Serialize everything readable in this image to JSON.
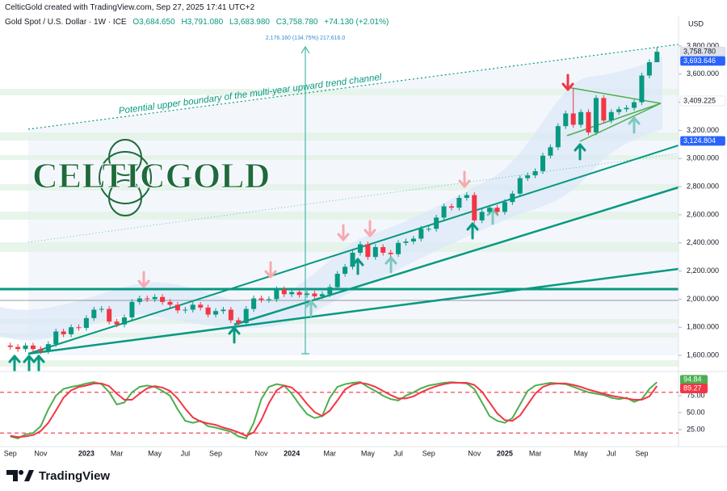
{
  "footer": "TradingView",
  "chart_data": [
    {
      "type": "candlestick",
      "title": "Gold Spot / U.S. Dollar · 1W · ICE",
      "subtitle": "CelticGold created with TradingView.com, Sep 27, 2025 17:41 UTC+2",
      "ohlc_labels": [
        "O3,684.650",
        "H3,791.080",
        "L3,683.980",
        "C3,758.780",
        "+74.130 (+2.01%)"
      ],
      "logo": "CELTICGOLD",
      "annotations": [
        "Potential upper boundary of the multi-year upward trend channel",
        "2,176.160 (134.75%) 217,616.0"
      ],
      "unit": "USD",
      "categories": [
        "Sep",
        null,
        null,
        null,
        "Nov",
        null,
        null,
        null,
        null,
        null,
        "2023",
        null,
        null,
        null,
        "Mar",
        null,
        null,
        null,
        null,
        "May",
        null,
        null,
        null,
        "Jul",
        null,
        null,
        null,
        "Sep",
        null,
        null,
        null,
        null,
        null,
        "Nov",
        null,
        null,
        null,
        "2024",
        null,
        null,
        null,
        null,
        "Mar",
        null,
        null,
        null,
        null,
        "May",
        null,
        null,
        null,
        "Jul",
        null,
        null,
        null,
        "Sep",
        null,
        null,
        null,
        null,
        null,
        "Nov",
        null,
        null,
        null,
        "2025",
        null,
        null,
        null,
        "Mar",
        null,
        null,
        null,
        null,
        null,
        "May",
        null,
        null,
        null,
        "Jul",
        null,
        null,
        null,
        "Sep",
        null,
        null
      ],
      "open": [
        1670,
        1660,
        1645,
        1670,
        1645,
        1630,
        1680,
        1770,
        1750,
        1800,
        1795,
        1865,
        1925,
        1930,
        1840,
        1820,
        1870,
        1980,
        2005,
        2000,
        2015,
        1980,
        1960,
        1920,
        1925,
        1960,
        1940,
        1890,
        1915,
        1925,
        1850,
        1830,
        1930,
        2005,
        1995,
        2000,
        2070,
        2035,
        2050,
        2030,
        2040,
        2020,
        2035,
        2085,
        2180,
        2230,
        2330,
        2390,
        2300,
        2370,
        2330,
        2320,
        2400,
        2410,
        2430,
        2500,
        2500,
        2580,
        2660,
        2650,
        2720,
        2740,
        2560,
        2620,
        2650,
        2620,
        2690,
        2750,
        2860,
        2880,
        2910,
        3020,
        3080,
        3230,
        3320,
        3240,
        3330,
        3185,
        3430,
        3270,
        3330,
        3350,
        3360,
        3400,
        3590,
        3684.65
      ],
      "high": [
        1690,
        1680,
        1690,
        1690,
        1665,
        1700,
        1790,
        1790,
        1820,
        1820,
        1885,
        1945,
        1950,
        1950,
        1860,
        1890,
        2000,
        2025,
        2025,
        2035,
        2035,
        2000,
        1980,
        1945,
        1980,
        1980,
        1960,
        1935,
        1945,
        1945,
        1870,
        1950,
        2025,
        2025,
        2020,
        2090,
        2090,
        2070,
        2070,
        2060,
        2060,
        2055,
        2105,
        2200,
        2250,
        2350,
        2410,
        2410,
        2390,
        2390,
        2350,
        2420,
        2430,
        2450,
        2520,
        2520,
        2600,
        2680,
        2680,
        2740,
        2760,
        2760,
        2640,
        2670,
        2670,
        2710,
        2770,
        2880,
        2900,
        2930,
        3040,
        3100,
        3250,
        3340,
        3500,
        3350,
        3350,
        3450,
        3450,
        3350,
        3370,
        3380,
        3420,
        3610,
        3705,
        3791.08
      ],
      "low": [
        1640,
        1625,
        1625,
        1625,
        1610,
        1610,
        1660,
        1730,
        1730,
        1775,
        1775,
        1845,
        1905,
        1820,
        1800,
        1800,
        1850,
        1960,
        1980,
        1980,
        1960,
        1940,
        1900,
        1900,
        1905,
        1920,
        1870,
        1870,
        1895,
        1830,
        1810,
        1810,
        1910,
        1975,
        1975,
        1980,
        2015,
        2015,
        2010,
        2010,
        2000,
        2000,
        2015,
        2065,
        2160,
        2210,
        2310,
        2280,
        2280,
        2310,
        2300,
        2300,
        2380,
        2390,
        2410,
        2480,
        2480,
        2560,
        2630,
        2630,
        2700,
        2540,
        2540,
        2600,
        2600,
        2600,
        2670,
        2730,
        2840,
        2860,
        2890,
        3000,
        3060,
        3210,
        3220,
        3220,
        3165,
        3165,
        3250,
        3250,
        3310,
        3330,
        3340,
        3380,
        3570,
        3683.98
      ],
      "close": [
        1660,
        1645,
        1670,
        1645,
        1630,
        1680,
        1770,
        1750,
        1800,
        1795,
        1865,
        1925,
        1930,
        1840,
        1820,
        1870,
        1980,
        2005,
        2000,
        2015,
        1980,
        1960,
        1920,
        1925,
        1960,
        1940,
        1890,
        1915,
        1925,
        1850,
        1830,
        1930,
        2005,
        1995,
        2000,
        2070,
        2035,
        2050,
        2030,
        2040,
        2020,
        2035,
        2085,
        2180,
        2230,
        2330,
        2390,
        2300,
        2370,
        2330,
        2320,
        2400,
        2410,
        2430,
        2500,
        2500,
        2580,
        2660,
        2650,
        2720,
        2740,
        2560,
        2620,
        2650,
        2620,
        2690,
        2750,
        2860,
        2880,
        2910,
        3020,
        3080,
        3230,
        3320,
        3240,
        3330,
        3185,
        3430,
        3270,
        3330,
        3350,
        3360,
        3400,
        3590,
        3684.65,
        3758.78
      ],
      "up_color": "#089981",
      "down_color": "#f23645",
      "ylim": [
        1497,
        4012
      ],
      "yticks": [
        {
          "value": 1600,
          "label": "1,600.000"
        },
        {
          "value": 1800,
          "label": "1,800.000"
        },
        {
          "value": 2000,
          "label": "2,000.000"
        },
        {
          "value": 2200,
          "label": "2,200.000"
        },
        {
          "value": 2400,
          "label": "2,400.000"
        },
        {
          "value": 2600,
          "label": "2,600.000"
        },
        {
          "value": 2800,
          "label": "2,800.000"
        },
        {
          "value": 3000,
          "label": "3,000.000"
        },
        {
          "value": 3200,
          "label": "3,200.000"
        },
        {
          "value": 3400,
          "label": "3,400.000"
        },
        {
          "value": 3600,
          "label": "3,600.000"
        },
        {
          "value": 3800,
          "label": "3,800.000"
        }
      ],
      "price_labels": [
        {
          "value": 3758.78,
          "label": "3,758.780",
          "color": "#e0e3eb",
          "text_color": "#131722"
        },
        {
          "value": 3693.646,
          "label": "3,693.646",
          "color": "#2962ff",
          "text_color": "#ffffff"
        },
        {
          "value": 3409.225,
          "label": "3,409.225",
          "color": "#ffffff",
          "text_color": "#131722"
        },
        {
          "value": 3124.804,
          "label": "3,124.804",
          "color": "#2962ff",
          "text_color": "#ffffff"
        }
      ],
      "grid": false
    },
    {
      "type": "line",
      "series": [
        {
          "color": "#4caf50",
          "values": [
            15,
            12,
            18,
            20,
            30,
            55,
            75,
            85,
            88,
            90,
            93,
            95,
            92,
            80,
            62,
            65,
            80,
            88,
            90,
            88,
            82,
            75,
            55,
            38,
            35,
            38,
            30,
            28,
            25,
            22,
            15,
            12,
            35,
            70,
            88,
            92,
            90,
            78,
            62,
            48,
            42,
            45,
            72,
            88,
            92,
            94,
            95,
            88,
            82,
            75,
            70,
            68,
            75,
            80,
            86,
            90,
            92,
            94,
            95,
            94,
            93,
            85,
            65,
            45,
            38,
            35,
            42,
            62,
            82,
            90,
            92,
            94,
            93,
            92,
            88,
            84,
            80,
            78,
            76,
            72,
            70,
            72,
            66,
            70,
            85,
            94.84
          ]
        },
        {
          "color": "#f23645",
          "values": [
            16,
            14,
            15,
            17,
            23,
            35,
            53,
            72,
            83,
            88,
            90,
            93,
            93,
            89,
            78,
            69,
            69,
            78,
            86,
            89,
            87,
            82,
            71,
            56,
            43,
            37,
            34,
            32,
            28,
            25,
            21,
            16,
            21,
            39,
            64,
            83,
            90,
            87,
            77,
            63,
            51,
            45,
            53,
            68,
            84,
            91,
            94,
            92,
            88,
            82,
            76,
            71,
            71,
            74,
            80,
            85,
            89,
            92,
            94,
            94,
            94,
            91,
            81,
            65,
            49,
            39,
            38,
            46,
            62,
            78,
            88,
            92,
            93,
            93,
            91,
            88,
            84,
            81,
            78,
            75,
            73,
            71,
            69,
            69,
            74,
            89.27
          ]
        }
      ],
      "ylim": [
        0,
        100
      ],
      "yticks": [
        {
          "value": 25,
          "label": "25.00"
        },
        {
          "value": 50,
          "label": "50.00"
        },
        {
          "value": 75,
          "label": "75.00"
        }
      ],
      "levels": [
        80,
        20
      ],
      "level_color": "#f23645"
    }
  ]
}
